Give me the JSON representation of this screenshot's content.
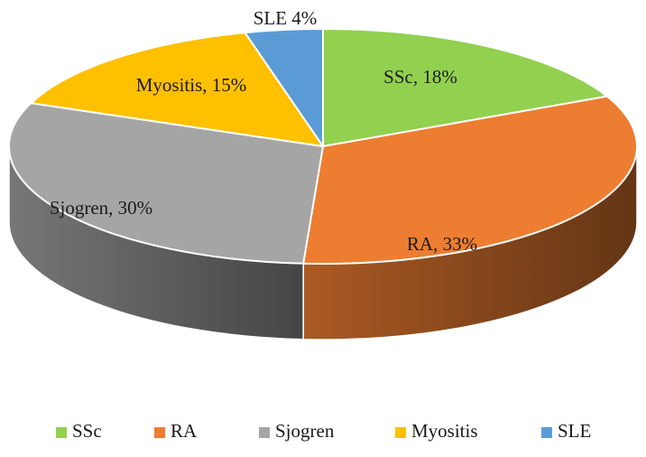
{
  "chart_data": {
    "type": "pie",
    "style": "3d",
    "title": "",
    "slices": [
      {
        "name": "SSc",
        "value": 18,
        "label": "SSc, 18%",
        "color": "#92d050"
      },
      {
        "name": "RA",
        "value": 33,
        "label": "RA, 33%",
        "color": "#ed7d31"
      },
      {
        "name": "Sjogren",
        "value": 30,
        "label": "Sjogren, 30%",
        "color": "#a5a5a5"
      },
      {
        "name": "Myositis",
        "value": 15,
        "label": "Myositis, 15%",
        "color": "#ffc000"
      },
      {
        "name": "SLE",
        "value": 4,
        "label": "SLE 4%",
        "color": "#5b9bd5"
      }
    ],
    "legend": {
      "position": "bottom",
      "entries": [
        "SSc",
        "RA",
        "Sjogren",
        "Myositis",
        "SLE"
      ]
    }
  }
}
